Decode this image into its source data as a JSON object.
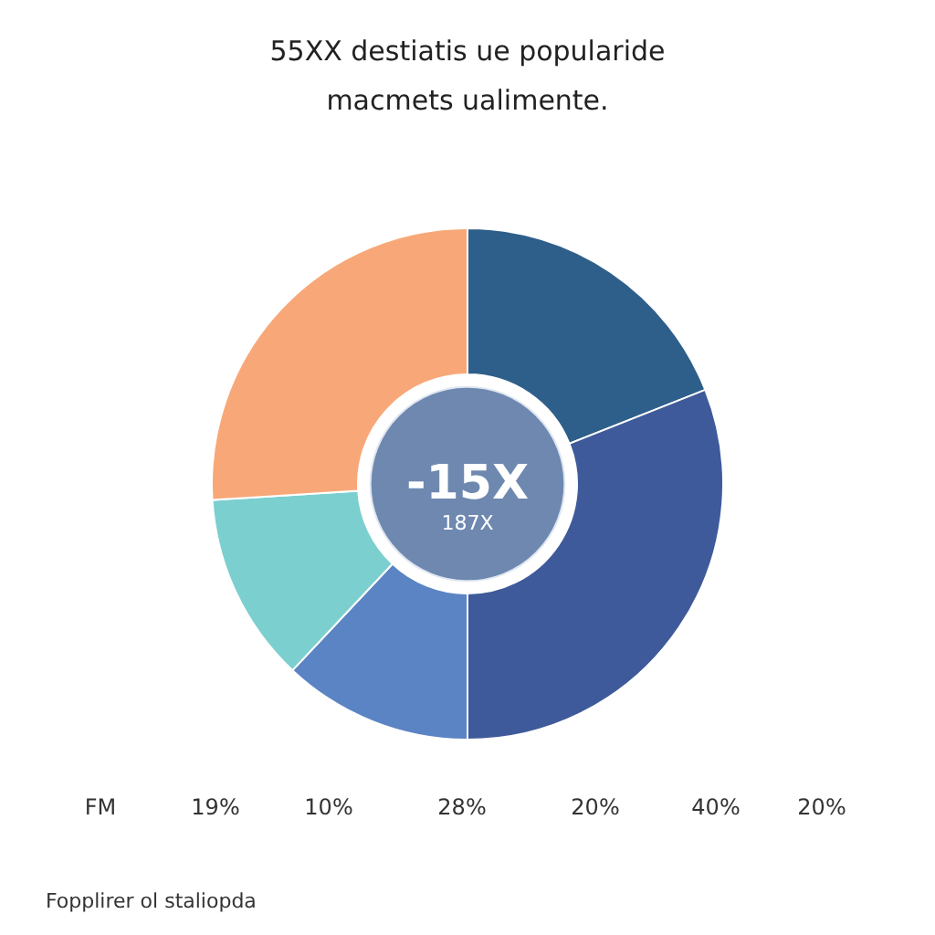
{
  "chart_data": {
    "type": "donut",
    "title": "55XX destiatis ue popularide",
    "subtitle": "macmets ualimente.",
    "categories": [
      null,
      null,
      null,
      null,
      null
    ],
    "values": [
      19,
      31,
      12,
      12,
      26
    ],
    "colors": [
      "#2e5f8a",
      "#3f5a9a",
      "#5b84c4",
      "#7ccfcf",
      "#f8a878"
    ],
    "annotations": [
      "-15X",
      "187X",
      "FM",
      "19%",
      "10%",
      "28%",
      "20%",
      "40%",
      "20%",
      "Fopplirer ol staliopda"
    ]
  }
}
